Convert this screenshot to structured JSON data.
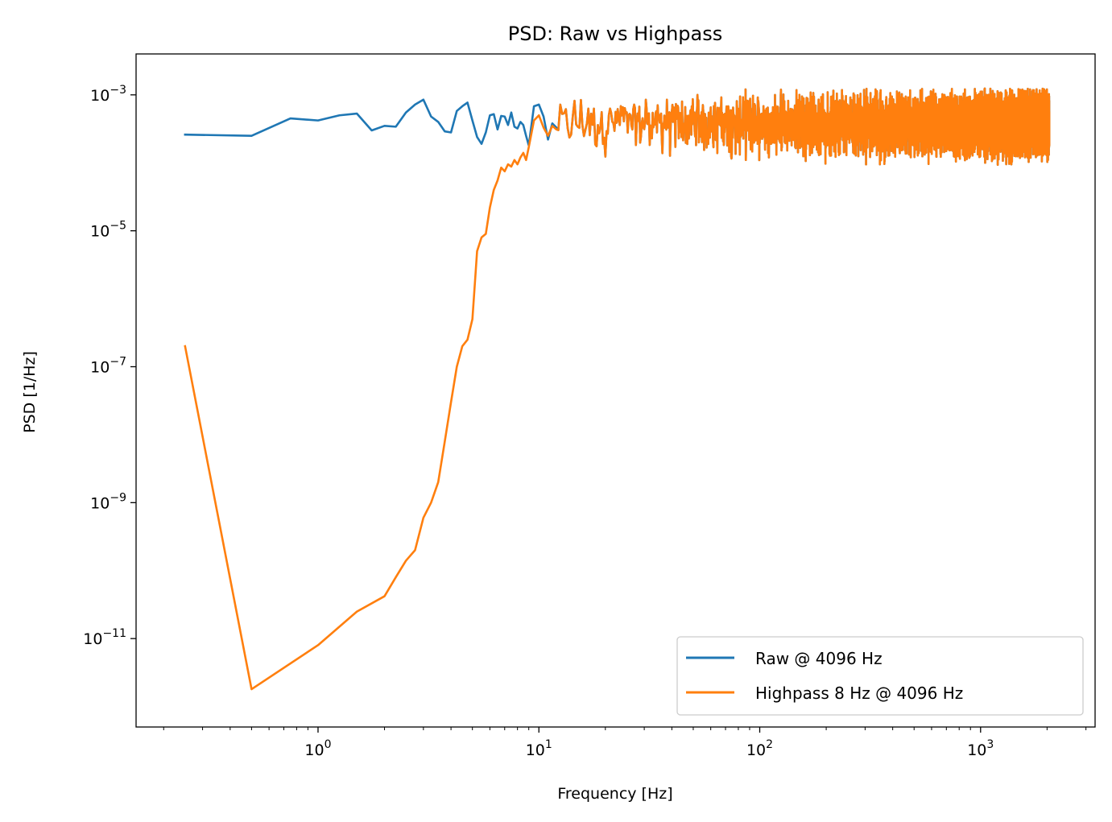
{
  "chart_data": {
    "type": "line",
    "title": "PSD: Raw vs Highpass",
    "xlabel": "Frequency [Hz]",
    "ylabel": "PSD [1/Hz]",
    "xscale": "log",
    "yscale": "log",
    "xlim": [
      0.15,
      3300
    ],
    "ylim": [
      5e-13,
      0.004
    ],
    "x_ticks": [
      {
        "value": 1,
        "base": "10",
        "exp": "0"
      },
      {
        "value": 10,
        "base": "10",
        "exp": "1"
      },
      {
        "value": 100,
        "base": "10",
        "exp": "2"
      },
      {
        "value": 1000,
        "base": "10",
        "exp": "3"
      }
    ],
    "y_ticks": [
      {
        "value": 0.001,
        "base": "10",
        "exp": "−3"
      },
      {
        "value": 1e-05,
        "base": "10",
        "exp": "−5"
      },
      {
        "value": 1e-07,
        "base": "10",
        "exp": "−7"
      },
      {
        "value": 1e-09,
        "base": "10",
        "exp": "−9"
      },
      {
        "value": 1e-11,
        "base": "10",
        "exp": "−11"
      }
    ],
    "legend_position": "bottom-right",
    "series": [
      {
        "name": "Raw @ 4096 Hz",
        "color": "#1f77b4",
        "x": [
          0.25,
          0.5,
          0.75,
          1.0,
          1.25,
          1.5,
          1.75,
          2.0,
          2.25,
          2.5,
          2.75,
          3.0,
          3.25,
          3.5,
          3.75,
          4.0,
          4.25,
          4.5,
          4.75,
          5.0,
          5.25,
          5.5,
          5.75,
          6.0,
          6.25,
          6.5,
          6.75,
          7.0,
          7.25,
          7.5,
          7.75,
          8.0,
          8.25,
          8.5,
          8.75,
          9.0,
          9.5,
          10.0,
          10.5,
          11.0,
          11.5,
          12.0
        ],
        "values": [
          0.00026,
          0.00025,
          0.00045,
          0.00042,
          0.0005,
          0.00053,
          0.0003,
          0.00035,
          0.00034,
          0.00055,
          0.00072,
          0.00085,
          0.00048,
          0.0004,
          0.00029,
          0.00028,
          0.00058,
          0.00068,
          0.00077,
          0.00042,
          0.00024,
          0.00019,
          0.00028,
          0.0005,
          0.00052,
          0.00031,
          0.00049,
          0.00048,
          0.00036,
          0.00055,
          0.00034,
          0.00032,
          0.0004,
          0.00036,
          0.00025,
          0.00018,
          0.00068,
          0.00072,
          0.00048,
          0.00022,
          0.00038,
          0.00033
        ]
      },
      {
        "name": "Highpass 8 Hz @ 4096 Hz",
        "color": "#ff7f0e",
        "x": [
          0.25,
          0.5,
          1.0,
          1.5,
          2.0,
          2.25,
          2.5,
          2.75,
          3.0,
          3.25,
          3.5,
          3.75,
          4.0,
          4.25,
          4.5,
          4.75,
          5.0,
          5.25,
          5.5,
          5.75,
          6.0,
          6.25,
          6.5,
          6.75,
          7.0,
          7.25,
          7.5,
          7.75,
          8.0,
          8.25,
          8.5,
          8.75,
          9.0,
          9.5,
          10.0,
          10.5,
          11.0,
          11.5,
          12.0
        ],
        "values": [
          2e-07,
          1.8e-12,
          8e-12,
          2.5e-11,
          4.2e-11,
          8e-11,
          1.4e-10,
          2e-10,
          6e-10,
          1e-09,
          2e-09,
          8e-09,
          3e-08,
          1e-07,
          2e-07,
          2.5e-07,
          5e-07,
          5e-06,
          8e-06,
          9e-06,
          2.2e-05,
          4e-05,
          5.5e-05,
          8.5e-05,
          7.5e-05,
          9.5e-05,
          8.8e-05,
          0.00011,
          9.5e-05,
          0.00012,
          0.00014,
          0.00011,
          0.00017,
          0.00042,
          0.0005,
          0.00033,
          0.00025,
          0.00035,
          0.00031
        ]
      }
    ]
  }
}
